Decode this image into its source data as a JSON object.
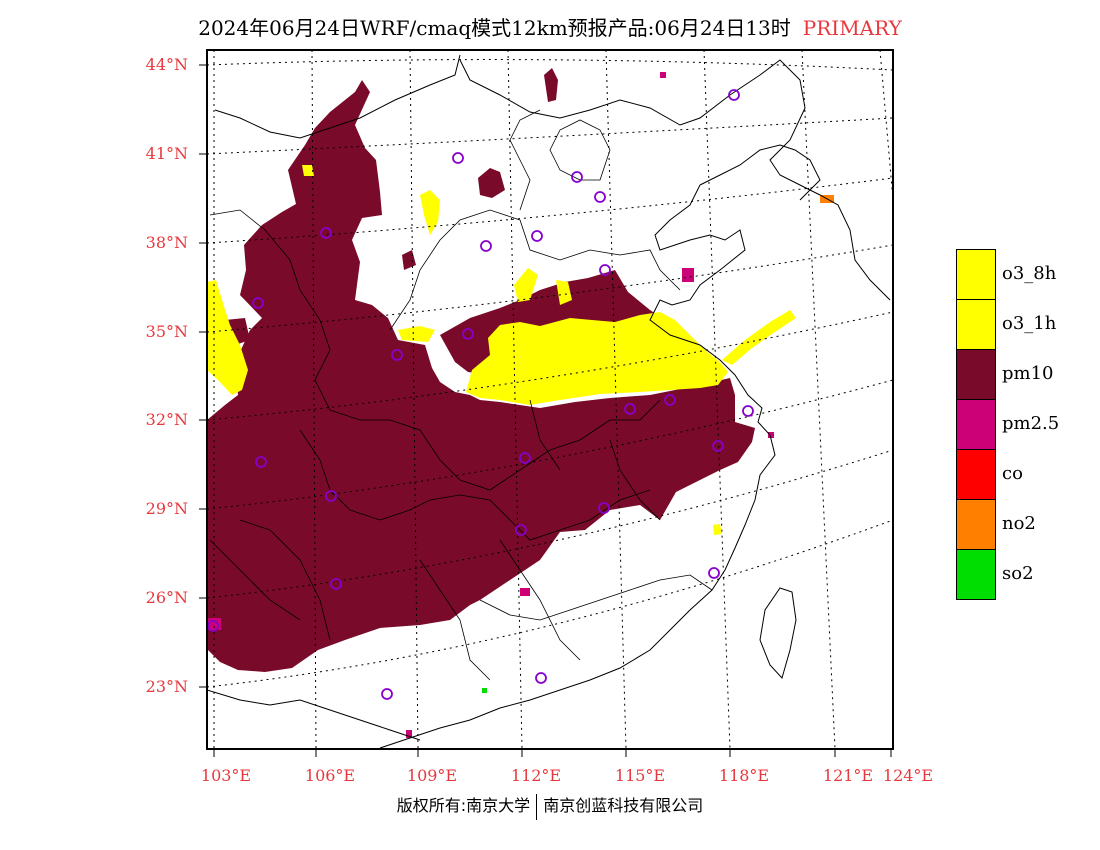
{
  "title": {
    "main": "2024年06月24日WRF/cmaq模式12km预报产品:06月24日13时",
    "tag": "PRIMARY"
  },
  "axes": {
    "lat_labels": [
      "44°N",
      "41°N",
      "38°N",
      "35°N",
      "32°N",
      "29°N",
      "26°N",
      "23°N"
    ],
    "lon_labels": [
      "103°E",
      "106°E",
      "109°E",
      "112°E",
      "115°E",
      "118°E",
      "121°E",
      "124°E"
    ]
  },
  "legend": {
    "items": [
      {
        "label": "o3_8h",
        "color": "#ffff00"
      },
      {
        "label": "o3_1h",
        "color": "#ffff00"
      },
      {
        "label": "pm10",
        "color": "#7a0a2a"
      },
      {
        "label": "pm2.5",
        "color": "#cc0077"
      },
      {
        "label": "co",
        "color": "#ff0000"
      },
      {
        "label": "no2",
        "color": "#ff8000"
      },
      {
        "label": "so2",
        "color": "#00dd00"
      }
    ]
  },
  "colors": {
    "pm10": "#7a0a2a",
    "o3": "#ffff00",
    "pm25": "#cc0077",
    "no2": "#ff8000",
    "so2": "#00dd00",
    "station": "#8800cc",
    "label": "#e8383d"
  },
  "copyright": {
    "left": "版权所有:南京大学",
    "right": "南京创蓝科技有限公司"
  }
}
